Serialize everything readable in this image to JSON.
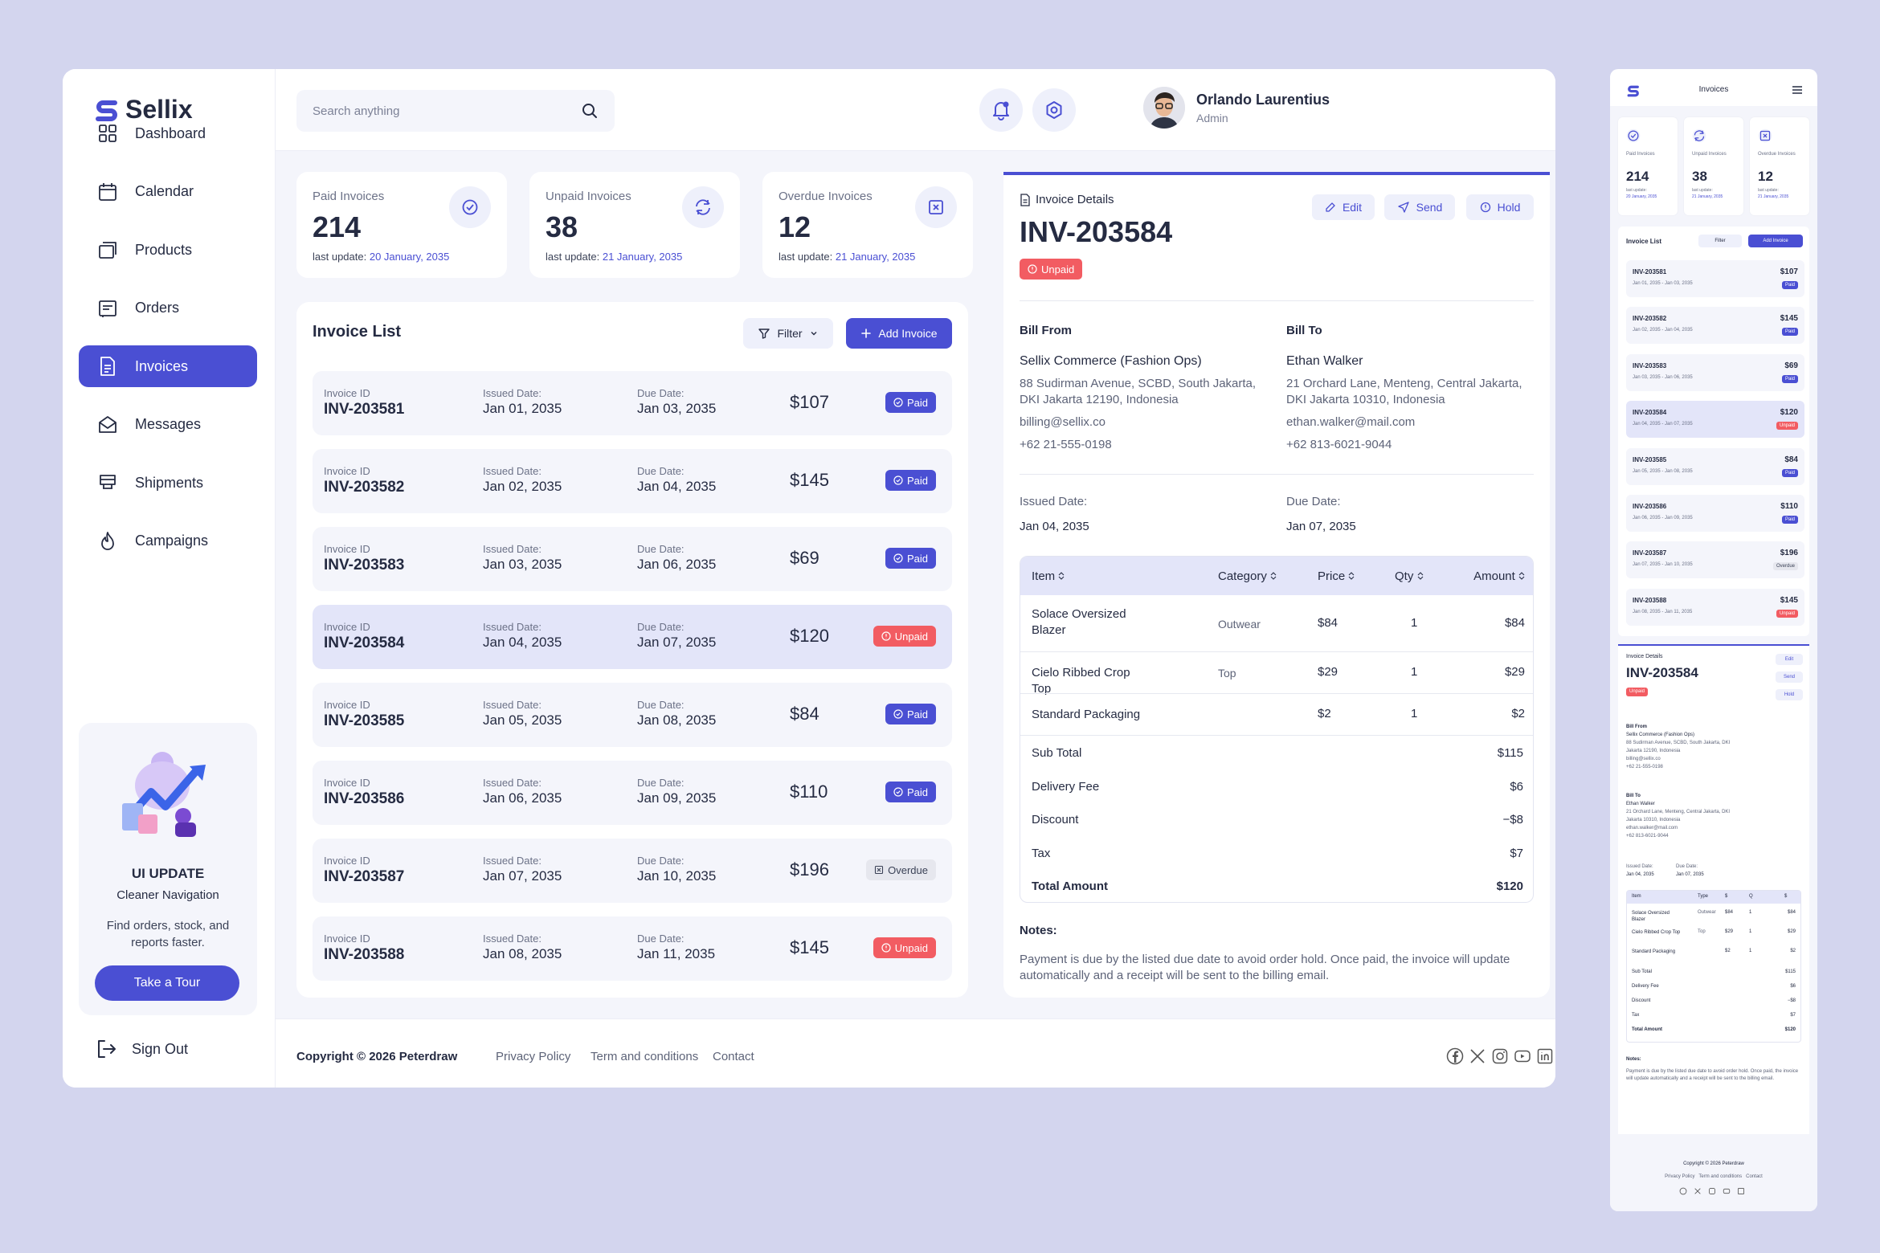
{
  "brand": {
    "name": "Sellix",
    "accent": "#4a4fd3",
    "unpaid_color": "#f25c62"
  },
  "sidebar": {
    "items": [
      {
        "label": "Dashboard",
        "icon": "grid-icon"
      },
      {
        "label": "Calendar",
        "icon": "calendar-icon"
      },
      {
        "label": "Products",
        "icon": "products-icon"
      },
      {
        "label": "Orders",
        "icon": "orders-icon"
      },
      {
        "label": "Invoices",
        "icon": "invoice-icon",
        "active": true
      },
      {
        "label": "Messages",
        "icon": "mail-icon"
      },
      {
        "label": "Shipments",
        "icon": "shipment-icon"
      },
      {
        "label": "Campaigns",
        "icon": "flame-icon"
      }
    ],
    "promo": {
      "title": "UI UPDATE",
      "subtitle": "Cleaner Navigation",
      "desc": "Find orders, stock, and reports faster.",
      "button": "Take a Tour"
    },
    "signout": "Sign Out"
  },
  "header": {
    "search_placeholder": "Search anything",
    "user_name": "Orlando Laurentius",
    "user_role": "Admin"
  },
  "stats": [
    {
      "label": "Paid Invoices",
      "value": "214",
      "update_prefix": "last update:",
      "update_date": "20 January, 2035"
    },
    {
      "label": "Unpaid Invoices",
      "value": "38",
      "update_prefix": "last update:",
      "update_date": "21 January, 2035"
    },
    {
      "label": "Overdue Invoices",
      "value": "12",
      "update_prefix": "last update:",
      "update_date": "21 January, 2035"
    }
  ],
  "list": {
    "title": "Invoice List",
    "filter": "Filter",
    "add": "Add Invoice",
    "col_id": "Invoice ID",
    "col_issued": "Issued Date:",
    "col_due": "Due Date:",
    "rows": [
      {
        "id": "INV-203581",
        "issued": "Jan 01, 2035",
        "due": "Jan 03, 2035",
        "amount": "$107",
        "status": "Paid"
      },
      {
        "id": "INV-203582",
        "issued": "Jan 02, 2035",
        "due": "Jan 04, 2035",
        "amount": "$145",
        "status": "Paid"
      },
      {
        "id": "INV-203583",
        "issued": "Jan 03, 2035",
        "due": "Jan 06, 2035",
        "amount": "$69",
        "status": "Paid"
      },
      {
        "id": "INV-203584",
        "issued": "Jan 04, 2035",
        "due": "Jan 07, 2035",
        "amount": "$120",
        "status": "Unpaid"
      },
      {
        "id": "INV-203585",
        "issued": "Jan 05, 2035",
        "due": "Jan 08, 2035",
        "amount": "$84",
        "status": "Paid"
      },
      {
        "id": "INV-203586",
        "issued": "Jan 06, 2035",
        "due": "Jan 09, 2035",
        "amount": "$110",
        "status": "Paid"
      },
      {
        "id": "INV-203587",
        "issued": "Jan 07, 2035",
        "due": "Jan 10, 2035",
        "amount": "$196",
        "status": "Overdue"
      },
      {
        "id": "INV-203588",
        "issued": "Jan 08, 2035",
        "due": "Jan 11, 2035",
        "amount": "$145",
        "status": "Unpaid"
      }
    ]
  },
  "detail": {
    "label": "Invoice Details",
    "number": "INV-203584",
    "status": "Unpaid",
    "edit": "Edit",
    "send": "Send",
    "hold": "Hold",
    "bill_from": {
      "title": "Bill From",
      "name": "Sellix Commerce (Fashion Ops)",
      "address": "88 Sudirman Avenue, SCBD, South Jakarta, DKI Jakarta 12190, Indonesia",
      "email": "billing@sellix.co",
      "phone": "+62 21-555-0198"
    },
    "bill_to": {
      "title": "Bill To",
      "name": "Ethan Walker",
      "address": "21 Orchard Lane, Menteng, Central Jakarta, DKI Jakarta 10310, Indonesia",
      "email": "ethan.walker@mail.com",
      "phone": "+62 813-6021-9044"
    },
    "issued_label": "Issued Date:",
    "issued": "Jan 04, 2035",
    "due_label": "Due Date:",
    "due": "Jan 07, 2035",
    "table": {
      "headers": [
        "Item",
        "Category",
        "Price",
        "Qty",
        "Amount"
      ],
      "items": [
        {
          "item": "Solace Oversized Blazer",
          "category": "Outwear",
          "price": "$84",
          "qty": "1",
          "amount": "$84"
        },
        {
          "item": "Cielo Ribbed Crop Top",
          "category": "Top",
          "price": "$29",
          "qty": "1",
          "amount": "$29"
        },
        {
          "item": "Standard Packaging",
          "category": "",
          "price": "$2",
          "qty": "1",
          "amount": "$2"
        }
      ],
      "summary": [
        {
          "label": "Sub Total",
          "value": "$115"
        },
        {
          "label": "Delivery Fee",
          "value": "$6"
        },
        {
          "label": "Discount",
          "value": "−$8"
        },
        {
          "label": "Tax",
          "value": "$7"
        },
        {
          "label": "Total Amount",
          "value": "$120"
        }
      ]
    },
    "notes_title": "Notes:",
    "notes": "Payment is due by the listed due date to avoid order hold. Once paid, the invoice will update automatically and a receipt will be sent to the billing email."
  },
  "footer": {
    "copyright": "Copyright © 2026 Peterdraw",
    "links": [
      "Privacy Policy",
      "Term and conditions",
      "Contact"
    ]
  },
  "mobile": {
    "title": "Invoices",
    "mini_stats": [
      "Paid Invoices",
      "Unpaid Invoices",
      "Overdue Invoices"
    ],
    "bill_from_short": "Bill From",
    "bill_to_short": "Bill To",
    "type_header": "Type",
    "price_header": "$",
    "qty_header": "Q",
    "amount_header": "$",
    "item_header": "Item"
  }
}
